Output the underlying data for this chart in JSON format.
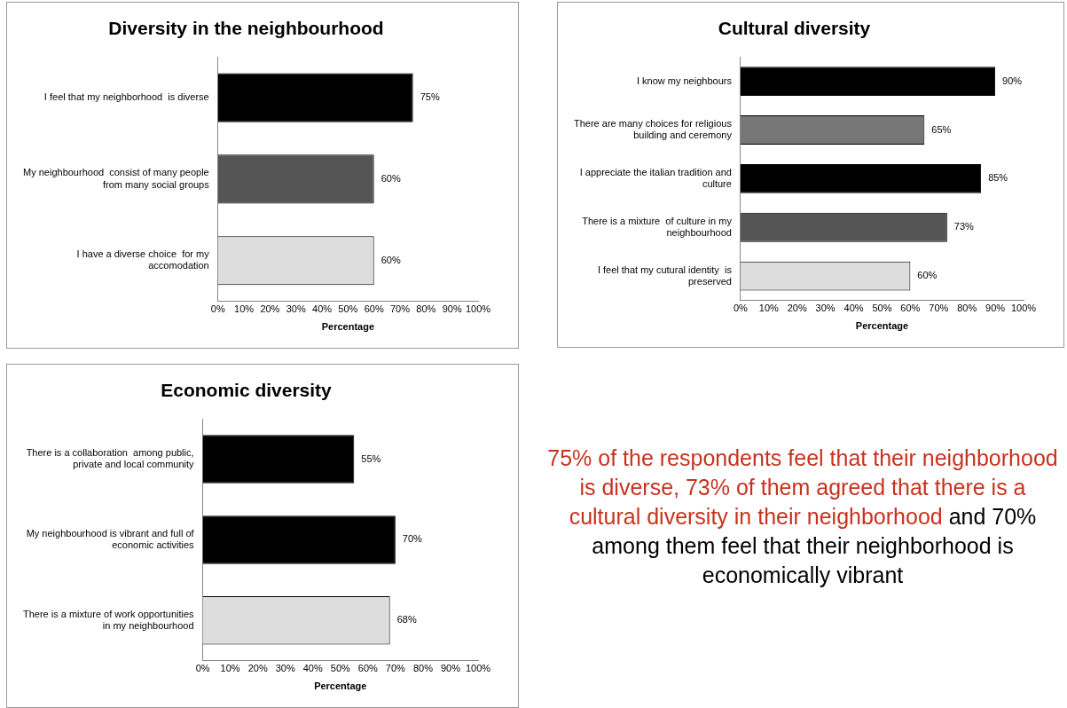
{
  "chart_data": [
    {
      "type": "bar",
      "orientation": "horizontal",
      "title": "Diversity in the neighbourhood",
      "xlabel": "Percentage",
      "categories": [
        "I feel that my neighborhood  is diverse",
        "My neighbourhood  consist of many people from many social groups",
        "I have a diverse choice  for my accomodation"
      ],
      "values": [
        75,
        60,
        60
      ],
      "colors": [
        "#000000",
        "#555555",
        "#dddddd"
      ],
      "value_labels": [
        "75%",
        "60%",
        "60%"
      ],
      "xlim": [
        0,
        100
      ],
      "xticks": [
        {
          "value": 0,
          "label": "0%"
        },
        {
          "value": 10,
          "label": "10%"
        },
        {
          "value": 20,
          "label": "20%"
        },
        {
          "value": 30,
          "label": "30%"
        },
        {
          "value": 40,
          "label": "40%"
        },
        {
          "value": 50,
          "label": "50%"
        },
        {
          "value": 60,
          "label": "60%"
        },
        {
          "value": 70,
          "label": "70%"
        },
        {
          "value": 80,
          "label": "80%"
        },
        {
          "value": 90,
          "label": "90%"
        },
        {
          "value": 100,
          "label": "100%"
        }
      ],
      "grid": false
    },
    {
      "type": "bar",
      "orientation": "horizontal",
      "title": "Cultural diversity",
      "xlabel": "Percentage",
      "categories": [
        "I know my neighbours",
        "There are many choices for religious building and ceremony",
        "I appreciate the italian tradition and culture",
        "There is a mixture  of culture in my neighbourhood",
        "I feel that my cutural identity  is preserved"
      ],
      "values": [
        90,
        65,
        85,
        73,
        60
      ],
      "colors": [
        "#000000",
        "#777777",
        "#000000",
        "#555555",
        "#dddddd"
      ],
      "value_labels": [
        "90%",
        "65%",
        "85%",
        "73%",
        "60%"
      ],
      "xlim": [
        0,
        100
      ],
      "xticks": [
        {
          "value": 0,
          "label": "0%"
        },
        {
          "value": 10,
          "label": "10%"
        },
        {
          "value": 20,
          "label": "20%"
        },
        {
          "value": 30,
          "label": "30%"
        },
        {
          "value": 40,
          "label": "40%"
        },
        {
          "value": 50,
          "label": "50%"
        },
        {
          "value": 60,
          "label": "60%"
        },
        {
          "value": 70,
          "label": "70%"
        },
        {
          "value": 80,
          "label": "80%"
        },
        {
          "value": 90,
          "label": "90%"
        },
        {
          "value": 100,
          "label": "100%"
        }
      ],
      "grid": false
    },
    {
      "type": "bar",
      "orientation": "horizontal",
      "title": "Economic diversity",
      "xlabel": "Percentage",
      "categories": [
        "There is a collaboration  among public, private and local community",
        "My neighbourhood is vibrant and full of economic activities",
        "There is a mixture of work opportunities  in my neighbourhood"
      ],
      "values": [
        55,
        70,
        68
      ],
      "colors": [
        "#000000",
        "#000000",
        "#dddddd"
      ],
      "value_labels": [
        "55%",
        "70%",
        "68%"
      ],
      "xlim": [
        0,
        100
      ],
      "xticks": [
        {
          "value": 0,
          "label": "0%"
        },
        {
          "value": 10,
          "label": "10%"
        },
        {
          "value": 20,
          "label": "20%"
        },
        {
          "value": 30,
          "label": "30%"
        },
        {
          "value": 40,
          "label": "40%"
        },
        {
          "value": 50,
          "label": "50%"
        },
        {
          "value": 60,
          "label": "60%"
        },
        {
          "value": 70,
          "label": "70%"
        },
        {
          "value": 80,
          "label": "80%"
        },
        {
          "value": 90,
          "label": "90%"
        },
        {
          "value": 100,
          "label": "100%"
        }
      ],
      "grid": false
    },
    {
      "type": "other",
      "annotations": [
        "75% of the respondents feel that their neighborhood is diverse, 73% of them agreed that there is a cultural diversity in their neighborhood",
        "and 70% among them feel that their neighborhood is economically vibrant"
      ]
    }
  ]
}
